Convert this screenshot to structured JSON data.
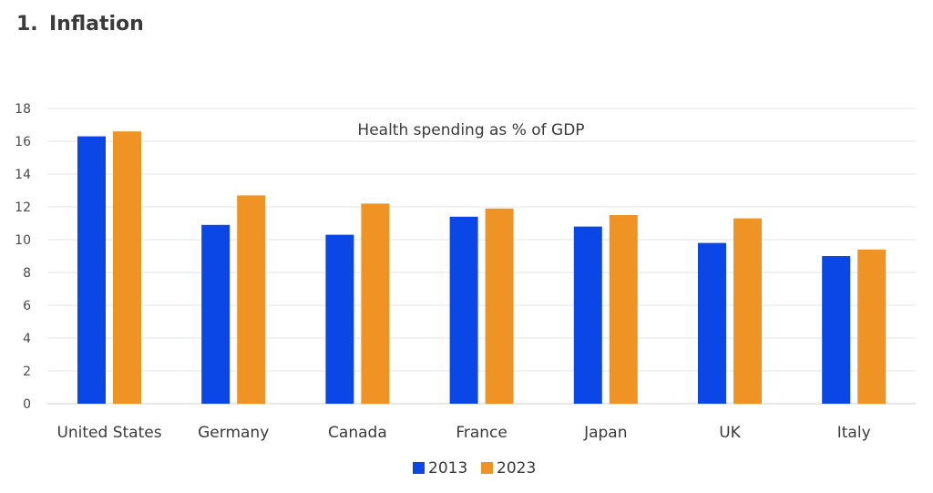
{
  "heading": {
    "number": "1.",
    "title": "Inflation"
  },
  "colors": {
    "series_2013": "#0a47e6",
    "series_2023": "#ef9424",
    "grid": "#e6e6e6",
    "axis": "#d0d0d0"
  },
  "chart_data": {
    "type": "bar",
    "title": "Health spending as % of GDP",
    "xlabel": "",
    "ylabel": "",
    "categories": [
      "United States",
      "Germany",
      "Canada",
      "France",
      "Japan",
      "UK",
      "Italy"
    ],
    "series": [
      {
        "name": "2013",
        "color": "#0a47e6",
        "values": [
          16.3,
          10.9,
          10.3,
          11.4,
          10.8,
          9.8,
          9.0
        ]
      },
      {
        "name": "2023",
        "color": "#ef9424",
        "values": [
          16.6,
          12.7,
          12.2,
          11.9,
          11.5,
          11.3,
          9.4
        ]
      }
    ],
    "ylim": [
      0,
      18
    ],
    "yticks": [
      "0",
      "2",
      "4",
      "6",
      "8",
      "10",
      "12",
      "14",
      "16",
      "18"
    ],
    "grid": true,
    "legend": "bottom-center"
  }
}
